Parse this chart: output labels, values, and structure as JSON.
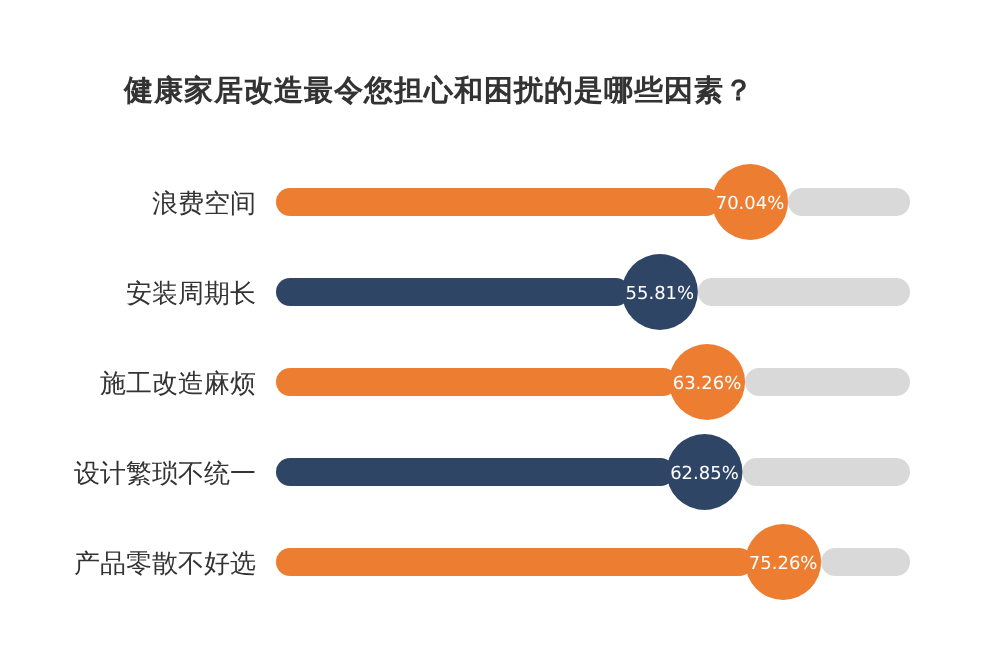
{
  "chart_data": {
    "type": "bar",
    "orientation": "horizontal",
    "title": "健康家居改造最令您担心和困扰的是哪些因素？",
    "categories": [
      "浪费空间",
      "安装周期长",
      "施工改造麻烦",
      "设计繁琐不统一",
      "产品零散不好选"
    ],
    "values": [
      70.04,
      55.81,
      63.26,
      62.85,
      75.26
    ],
    "colors": [
      "#ed7d31",
      "#2f4566",
      "#ed7d31",
      "#2f4566",
      "#ed7d31"
    ],
    "value_labels": [
      "70.04%",
      "55.81%",
      "63.26%",
      "62.85%",
      "75.26%"
    ],
    "tick_labels": "y"
  }
}
